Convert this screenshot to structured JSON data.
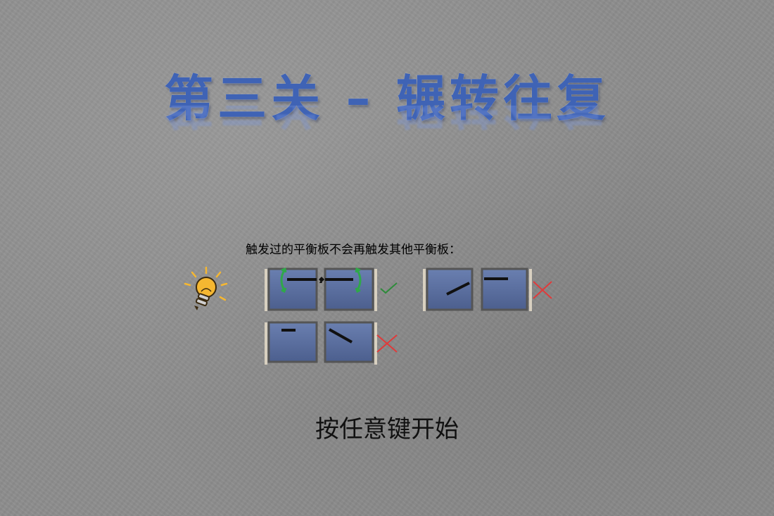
{
  "level": {
    "title": "第三关 – 辗转往复"
  },
  "hint": {
    "text": "触发过的平衡板不会再触发其他平衡板：",
    "icon": "lightbulb-icon"
  },
  "examples": [
    {
      "result": "valid",
      "result_icon": "check-icon"
    },
    {
      "result": "invalid",
      "result_icon": "cross-icon"
    },
    {
      "result": "invalid",
      "result_icon": "cross-icon"
    }
  ],
  "prompt": {
    "start": "按任意键开始"
  },
  "colors": {
    "title": "#3f63b5",
    "tile_fill": "#5a6e9c",
    "tile_border": "#555555",
    "check": "#2e8b3a",
    "cross": "#e03a3a",
    "rotate_arrow": "#2fa84a",
    "bulb": "#f5b731"
  }
}
